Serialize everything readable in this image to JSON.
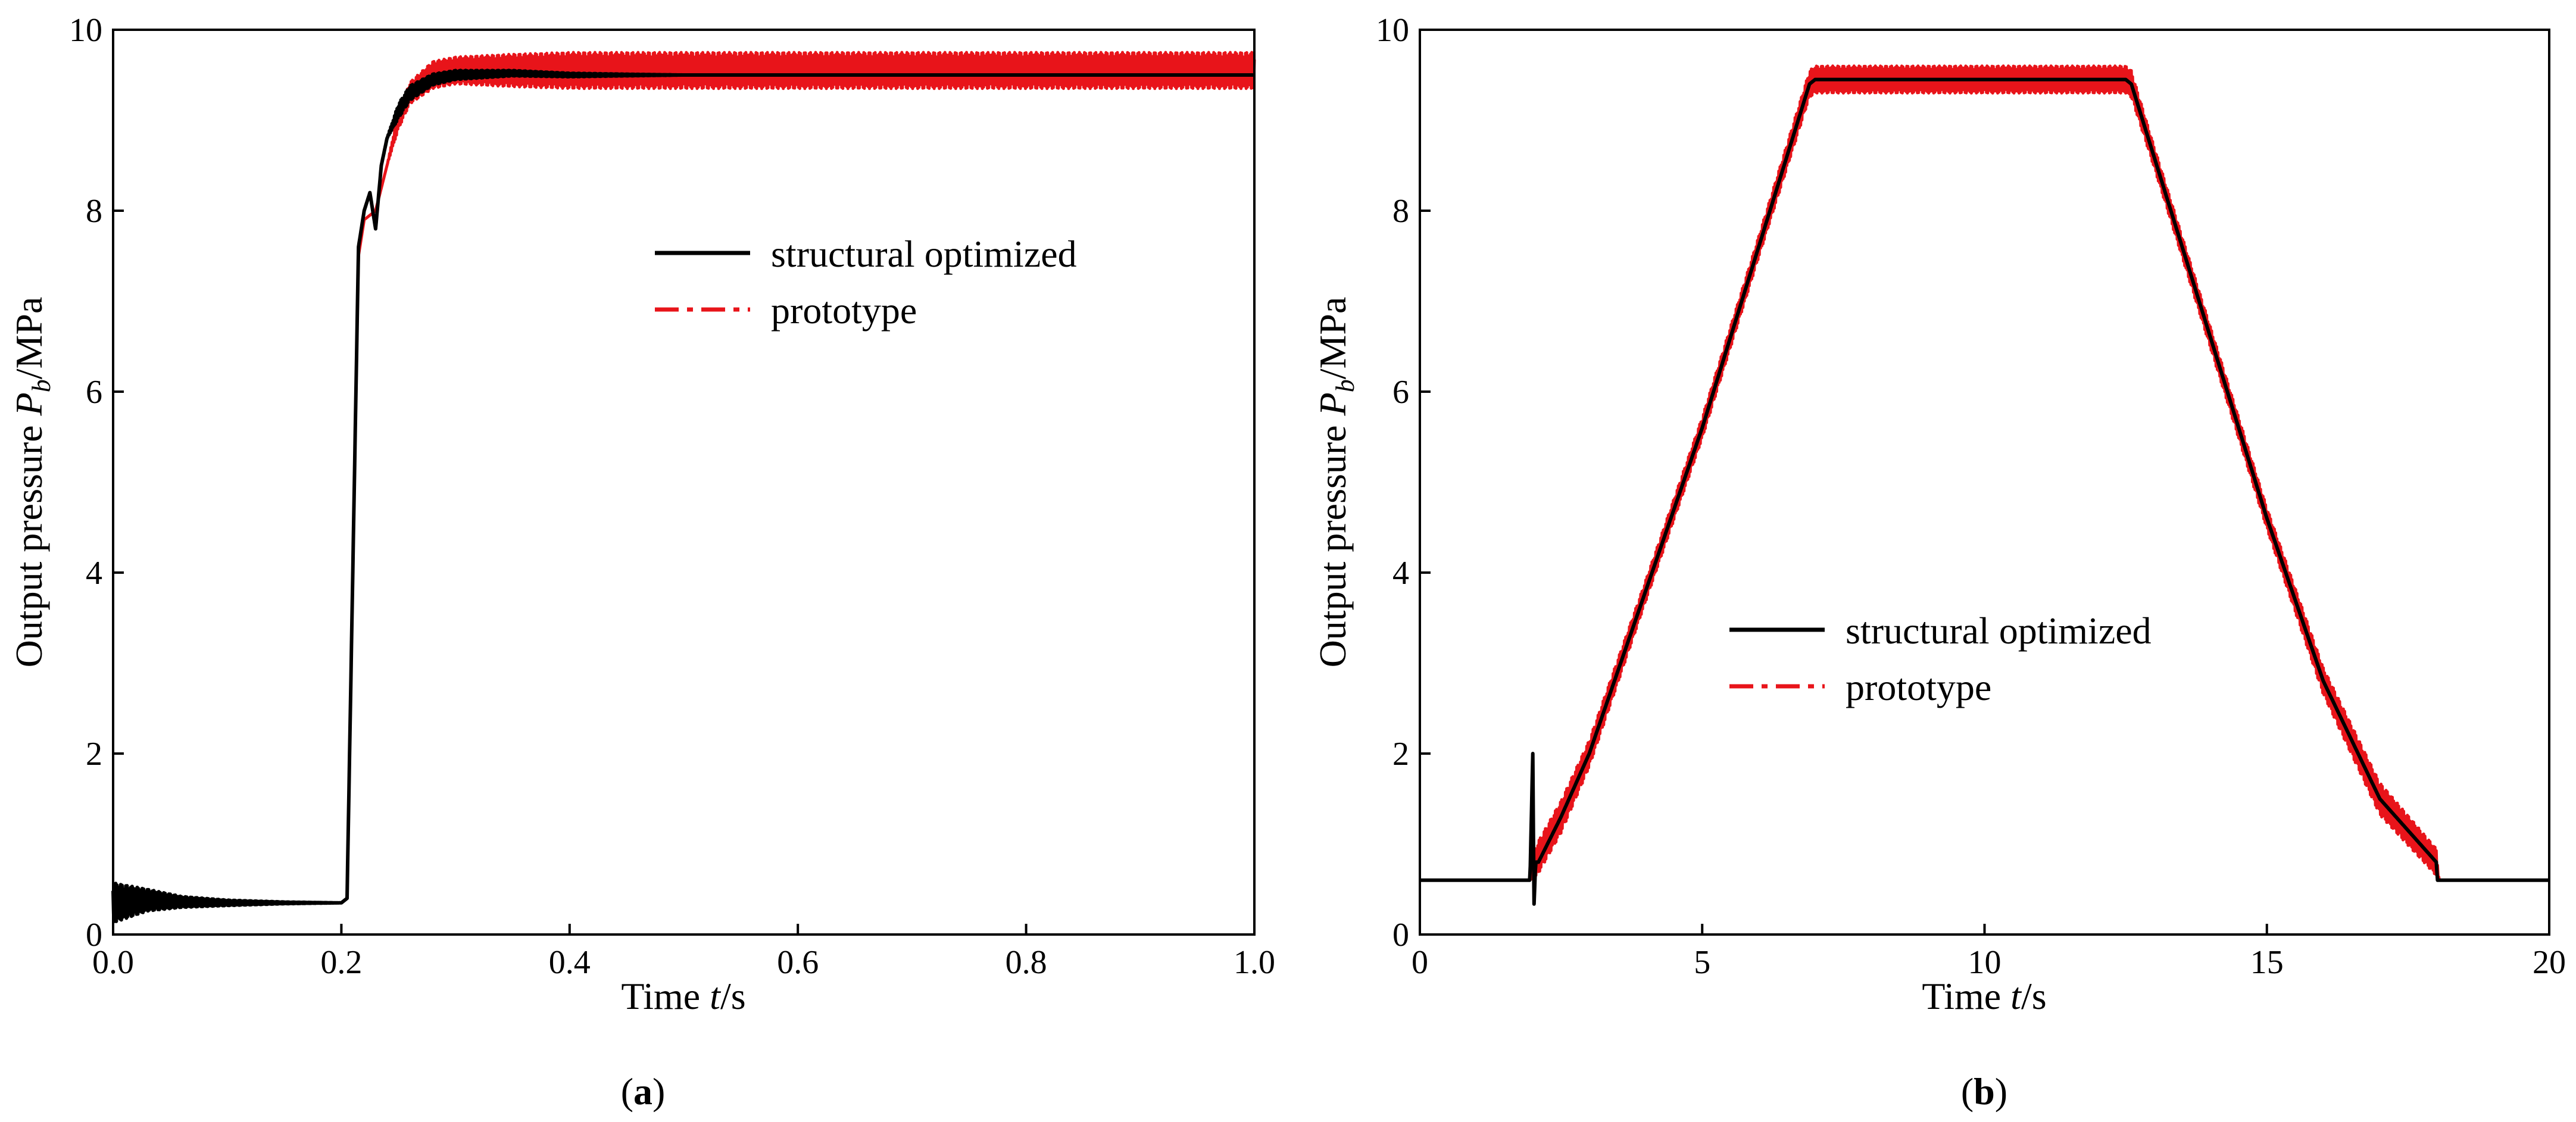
{
  "chart_data": [
    {
      "type": "line",
      "panel_label": "(a)",
      "panel_letter": "a",
      "xlabel": "Time t/s",
      "xlabel_parts": {
        "pre": "Time ",
        "var": "t",
        "post": "/s"
      },
      "ylabel": "Output pressure Pb/MPa",
      "ylabel_parts": {
        "pre": "Output pressure ",
        "var": "P",
        "sub": "b",
        "post": "/MPa"
      },
      "xlim": [
        0.0,
        1.0
      ],
      "ylim": [
        0,
        10
      ],
      "xticks": [
        0.0,
        0.2,
        0.4,
        0.6,
        0.8,
        1.0
      ],
      "xtick_labels": [
        "0.0",
        "0.2",
        "0.4",
        "0.6",
        "0.8",
        "1.0"
      ],
      "yticks": [
        0,
        2,
        4,
        6,
        8,
        10
      ],
      "ytick_labels": [
        "0",
        "2",
        "4",
        "6",
        "8",
        "10"
      ],
      "legend_position": "upper-center",
      "series": [
        {
          "name": "structural optimized",
          "color": "#000000",
          "style": "solid",
          "x": [
            0.0,
            0.03,
            0.06,
            0.1,
            0.15,
            0.2,
            0.205,
            0.21,
            0.215,
            0.22,
            0.225,
            0.23,
            0.235,
            0.24,
            0.25,
            0.26,
            0.28,
            0.3,
            0.35,
            0.4,
            0.5,
            0.6,
            0.8,
            1.0
          ],
          "y": [
            0.35,
            0.38,
            0.36,
            0.35,
            0.35,
            0.35,
            0.4,
            4.0,
            7.6,
            8.0,
            8.2,
            7.8,
            8.5,
            8.8,
            9.1,
            9.3,
            9.45,
            9.5,
            9.52,
            9.5,
            9.5,
            9.5,
            9.5,
            9.5
          ],
          "oscillation_amplitude": [
            0.22,
            0.12,
            0.06,
            0.03,
            0.01,
            0.0,
            0.0,
            0.0,
            0.0,
            0.0,
            0.0,
            0.0,
            0.0,
            0.0,
            0.08,
            0.08,
            0.06,
            0.05,
            0.03,
            0.02,
            0.0,
            0.0,
            0.0,
            0.0
          ]
        },
        {
          "name": "prototype",
          "color": "#e8141a",
          "style": "dashdot",
          "x": [
            0.0,
            0.03,
            0.06,
            0.1,
            0.15,
            0.2,
            0.205,
            0.21,
            0.215,
            0.22,
            0.23,
            0.24,
            0.25,
            0.26,
            0.28,
            0.3,
            0.35,
            0.4,
            0.5,
            0.6,
            0.8,
            1.0
          ],
          "y": [
            0.35,
            0.36,
            0.35,
            0.35,
            0.35,
            0.35,
            0.4,
            4.0,
            7.5,
            7.9,
            8.0,
            8.5,
            9.0,
            9.3,
            9.5,
            9.55,
            9.55,
            9.55,
            9.55,
            9.55,
            9.55,
            9.55
          ],
          "oscillation_amplitude": [
            0.15,
            0.08,
            0.04,
            0.02,
            0.01,
            0.0,
            0.0,
            0.0,
            0.0,
            0.0,
            0.0,
            0.0,
            0.1,
            0.12,
            0.15,
            0.15,
            0.18,
            0.2,
            0.2,
            0.2,
            0.2,
            0.2
          ]
        }
      ]
    },
    {
      "type": "line",
      "panel_label": "(b)",
      "panel_letter": "b",
      "xlabel": "Time t/s",
      "xlabel_parts": {
        "pre": "Time ",
        "var": "t",
        "post": "/s"
      },
      "ylabel": "Output pressure Pb/MPa",
      "ylabel_parts": {
        "pre": "Output pressure ",
        "var": "P",
        "sub": "b",
        "post": "/MPa"
      },
      "xlim": [
        0,
        20
      ],
      "ylim": [
        0,
        10
      ],
      "xticks": [
        0,
        5,
        10,
        15,
        20
      ],
      "xtick_labels": [
        "0",
        "5",
        "10",
        "15",
        "20"
      ],
      "yticks": [
        0,
        2,
        4,
        6,
        8,
        10
      ],
      "ytick_labels": [
        "0",
        "2",
        "4",
        "6",
        "8",
        "10"
      ],
      "legend_position": "center",
      "series": [
        {
          "name": "structural optimized",
          "color": "#000000",
          "style": "solid",
          "x": [
            0,
            1.95,
            2.0,
            2.02,
            2.05,
            2.1,
            2.5,
            3.0,
            4.0,
            5.0,
            6.0,
            6.9,
            7.0,
            10.0,
            12.5,
            12.6,
            13.0,
            14.0,
            15.0,
            16.0,
            17.0,
            18.0,
            18.02,
            20.0
          ],
          "y": [
            0.6,
            0.6,
            2.0,
            0.3,
            0.8,
            0.8,
            1.3,
            2.0,
            3.8,
            5.6,
            7.6,
            9.4,
            9.45,
            9.45,
            9.45,
            9.4,
            8.6,
            6.6,
            4.6,
            2.8,
            1.5,
            0.8,
            0.6,
            0.6
          ],
          "oscillation_amplitude": [
            0,
            0,
            0,
            0,
            0,
            0,
            0,
            0,
            0,
            0,
            0,
            0,
            0,
            0,
            0,
            0,
            0,
            0,
            0,
            0,
            0,
            0,
            0,
            0
          ]
        },
        {
          "name": "prototype",
          "color": "#e8141a",
          "style": "dashdot",
          "x": [
            0,
            1.95,
            2.05,
            2.5,
            3.0,
            4.0,
            5.0,
            6.0,
            6.9,
            7.0,
            10.0,
            12.5,
            12.6,
            13.0,
            14.0,
            15.0,
            16.0,
            17.0,
            18.0,
            18.05,
            20.0
          ],
          "y": [
            0.6,
            0.6,
            0.8,
            1.3,
            2.0,
            3.8,
            5.6,
            7.6,
            9.4,
            9.45,
            9.45,
            9.45,
            9.4,
            8.6,
            6.6,
            4.6,
            2.8,
            1.5,
            0.8,
            0.6,
            0.6
          ],
          "oscillation_amplitude": [
            0,
            0,
            0.18,
            0.18,
            0.15,
            0.12,
            0.12,
            0.12,
            0.15,
            0.15,
            0.15,
            0.15,
            0.15,
            0.12,
            0.12,
            0.12,
            0.15,
            0.18,
            0.15,
            0,
            0
          ]
        }
      ]
    }
  ]
}
